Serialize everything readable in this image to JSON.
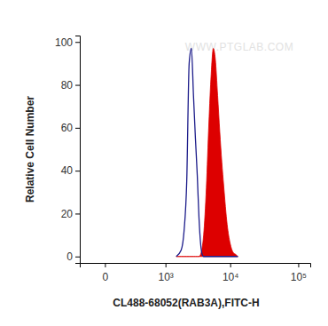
{
  "chart_data": {
    "type": "line",
    "annotation": "WWW.PTGLAB.COM",
    "x_label": "CL488-68052(RAB3A),FITC-H",
    "y_label": "Relative Cell Number",
    "log": "x",
    "x": [
      1500,
      1800,
      2000,
      2200,
      2400,
      2600,
      2800,
      3000,
      3200,
      3400,
      3600,
      3800,
      4000,
      4400,
      4800,
      5200,
      5600,
      6000,
      6500,
      7000,
      7500,
      8000,
      9000,
      10000,
      11000,
      12000,
      13000
    ],
    "series": [
      {
        "type": "line",
        "color": "#1c1c8a",
        "values": [
          0,
          3,
          12,
          35,
          90,
          97,
          75,
          55,
          38,
          18,
          6,
          1,
          0,
          0,
          0,
          0,
          0,
          0,
          0,
          0,
          0,
          0,
          0,
          0,
          0,
          0,
          0
        ]
      },
      {
        "type": "area",
        "color": "#dd0000",
        "values": [
          0,
          0,
          0,
          0,
          0,
          0,
          0,
          0,
          0,
          0,
          1,
          4,
          10,
          32,
          62,
          85,
          97,
          92,
          75,
          58,
          44,
          33,
          15,
          6,
          2,
          1,
          0
        ]
      }
    ],
    "xlim": [
      -200,
      150000
    ],
    "xticks": [
      0,
      {
        "value": 1000,
        "label": "10³"
      },
      {
        "value": 10000,
        "label": "10⁴"
      },
      {
        "value": 100000,
        "label": "10⁵"
      }
    ],
    "ylim": [
      -3,
      103
    ],
    "yticks": [
      0,
      20,
      40,
      60,
      80,
      100
    ],
    "grid": false
  }
}
